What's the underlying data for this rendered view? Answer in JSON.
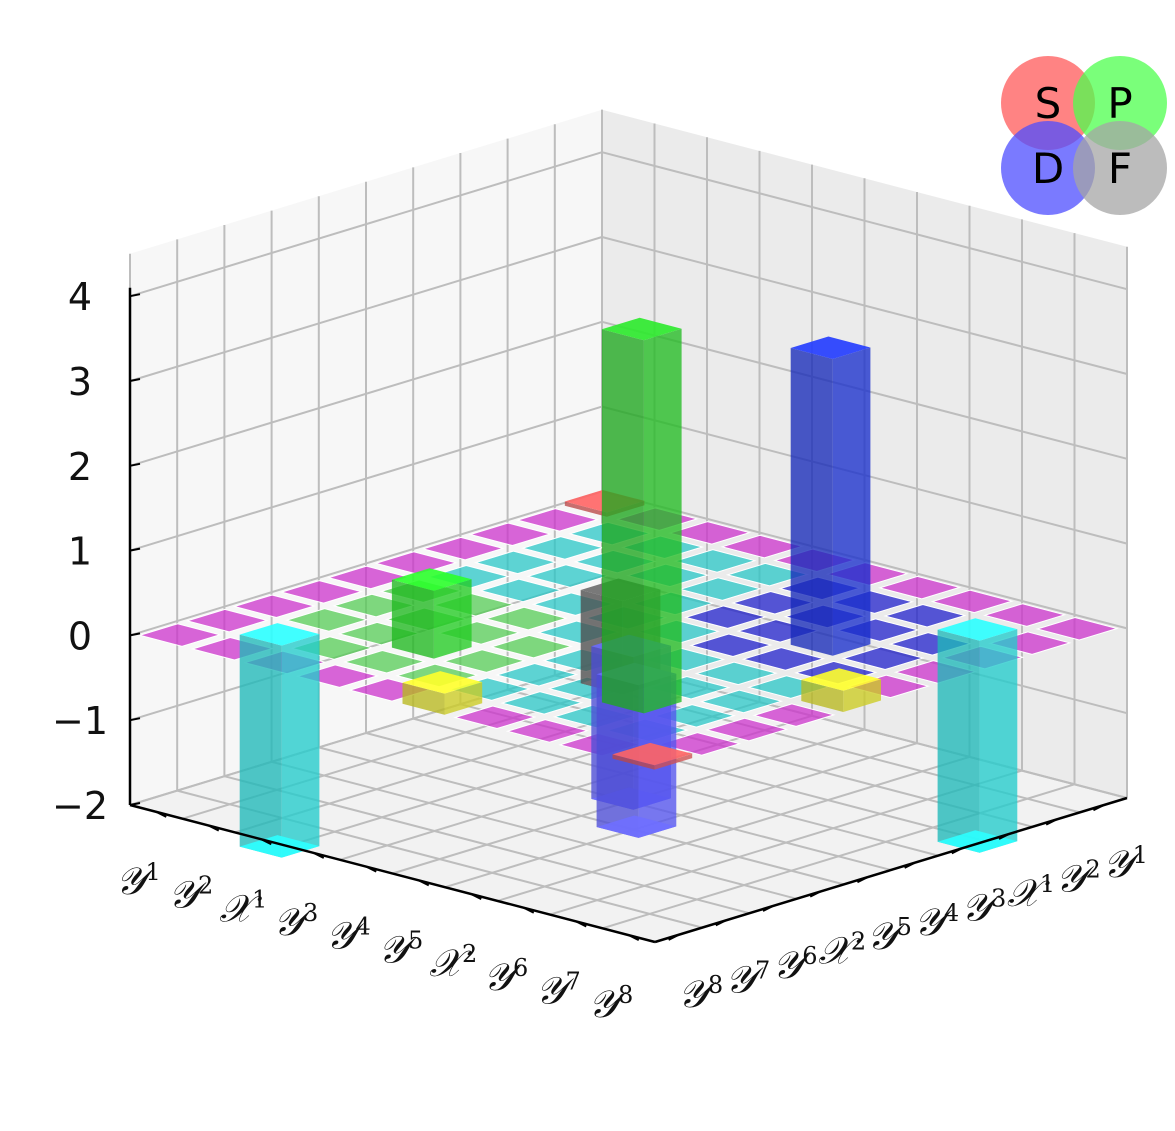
{
  "chart_data": {
    "type": "bar3d",
    "zlim": [
      -2,
      4
    ],
    "z_ticks": [
      "4",
      "3",
      "2",
      "1",
      "0",
      "−1",
      "−2"
    ],
    "grid": true,
    "left_axis_labels": [
      "𝒴¹",
      "𝒴²",
      "𝒳¹",
      "𝒴³",
      "𝒴⁴",
      "𝒴⁵",
      "𝒳²",
      "𝒴⁶",
      "𝒴⁷",
      "𝒴⁸"
    ],
    "right_axis_labels": [
      "𝒴⁸",
      "𝒴⁷",
      "𝒴⁶",
      "𝒳²",
      "𝒴⁵",
      "𝒴⁴",
      "𝒴³",
      "𝒳¹",
      "𝒴²",
      "𝒴¹"
    ],
    "legend": {
      "placement": "top-right",
      "entries": [
        {
          "letter": "S",
          "color": "#ff5a5a"
        },
        {
          "letter": "P",
          "color": "#4dff4d"
        },
        {
          "letter": "D",
          "color": "#4d4dff"
        },
        {
          "letter": "F",
          "color": "#a6a6a6"
        }
      ]
    },
    "bars": [
      {
        "i": 2,
        "j": 2,
        "value": 4.4,
        "color": "#22bb22"
      },
      {
        "i": 2,
        "j": 6,
        "value": 3.5,
        "color": "#1a2fcc"
      },
      {
        "i": 6,
        "j": 6,
        "value": -1.1,
        "color": "#555555"
      },
      {
        "i": 6,
        "j": 2,
        "value": 0.8,
        "color": "#22cc22"
      },
      {
        "i": 3,
        "j": 3,
        "value": -1.8,
        "color": "#5555ee"
      },
      {
        "i": 4,
        "j": 4,
        "value": -1.8,
        "color": "#5555ee"
      },
      {
        "i": 1,
        "j": 8,
        "value": -2.5,
        "color": "#22cccc"
      },
      {
        "i": 8,
        "j": 1,
        "value": -2.5,
        "color": "#22cccc"
      },
      {
        "i": 0,
        "j": 4,
        "value": 0.25,
        "color": "#cccc22"
      },
      {
        "i": 4,
        "j": 0,
        "value": 0.25,
        "color": "#cccc22"
      },
      {
        "i": 0,
        "j": 0,
        "value": 0.05,
        "color": "#d05050"
      },
      {
        "i": 9,
        "j": 9,
        "value": 0.05,
        "color": "#d05050"
      }
    ],
    "base_tile_color_rule": "magenta on row/col 0, cyan inner, green on outer ring, blue near middle"
  }
}
